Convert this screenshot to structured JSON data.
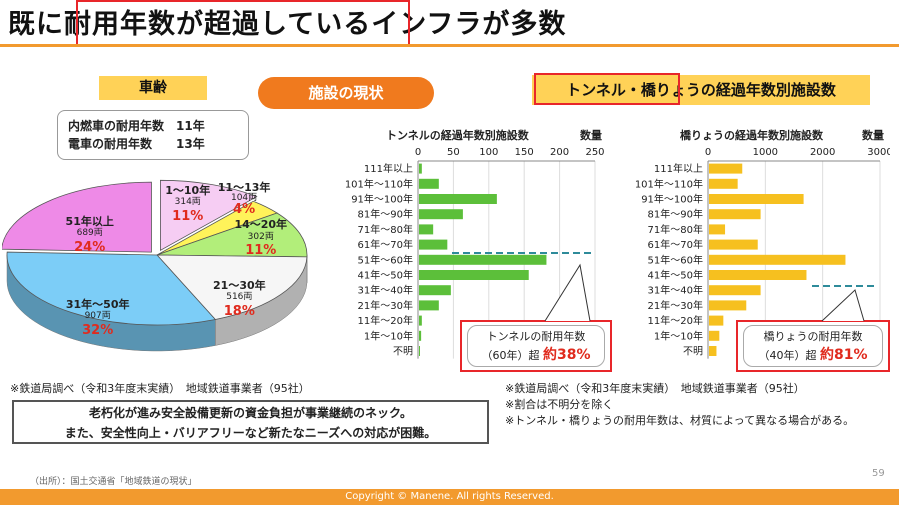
{
  "slide": {
    "title": "既に耐用年数が超過しているインフラが多数",
    "page_number": "59",
    "source": "（出所）：国土交通省「地域鉄道の現状」",
    "copyright": "Copyright © Manene. All rights Reserved."
  },
  "left": {
    "heading": "車齢",
    "lifespan_lines": [
      "内燃車の耐用年数　11年",
      "電車の耐用年数　　13年"
    ],
    "note": "※鉄道局調べ（令和3年度末実績）　地域鉄道事業者（95社）"
  },
  "center_pill": "施設の現状",
  "right_heading": "トンネル・橋りょうの経過年数別施設数",
  "pie_segments": [
    {
      "name": "1〜10年",
      "count": "314両",
      "pct": "11%",
      "value": 314,
      "color": "#f6cdf3"
    },
    {
      "name": "11〜13年",
      "count": "104両",
      "pct": "4%",
      "value": 104,
      "color": "#fff35a"
    },
    {
      "name": "14〜20年",
      "count": "302両",
      "pct": "11%",
      "value": 302,
      "color": "#b2ee7a"
    },
    {
      "name": "21〜30年",
      "count": "516両",
      "pct": "18%",
      "value": 516,
      "color": "#f6f6f6"
    },
    {
      "name": "31年〜50年",
      "count": "907両",
      "pct": "32%",
      "value": 907,
      "color": "#7ccdf7"
    },
    {
      "name": "51年以上",
      "count": "689両",
      "pct": "24%",
      "value": 689,
      "color": "#ee8ae7"
    }
  ],
  "info_box": [
    "老朽化が進み安全設備更新の資金負担が事業継続のネック。",
    "また、安全性向上・バリアフリーなど新たなニーズへの対応が困難。"
  ],
  "right_notes": [
    "※鉄道局調べ（令和3年度末実績）　地域鉄道事業者（95社）",
    "※割合は不明分を除く",
    "※トンネル・橋りょうの耐用年数は、材質によって異なる場合がある。"
  ],
  "chart_data": [
    {
      "type": "bar",
      "title": "トンネルの経過年数別施設数",
      "unit_label": "数量",
      "categories": [
        "111年以上",
        "101年〜110年",
        "91年〜100年",
        "81年〜90年",
        "71年〜80年",
        "61年〜70年",
        "51年〜60年",
        "41年〜50年",
        "31年〜40年",
        "21年〜30年",
        "11年〜20年",
        "1年〜10年",
        "不明"
      ],
      "values": [
        4,
        28,
        110,
        62,
        20,
        40,
        180,
        155,
        45,
        28,
        4,
        3,
        1
      ],
      "xlim": [
        0,
        250
      ],
      "ticks": [
        0,
        50,
        100,
        150,
        200,
        250
      ],
      "color": "#5cbf3a",
      "callout": {
        "title": "トンネルの耐用年数",
        "detail": "（60年）超",
        "pct": "約38%"
      }
    },
    {
      "type": "bar",
      "title": "橋りょうの経過年数別施設数",
      "unit_label": "数量",
      "categories": [
        "111年以上",
        "101年〜110年",
        "91年〜100年",
        "81年〜90年",
        "71年〜80年",
        "61年〜70年",
        "51年〜60年",
        "41年〜50年",
        "31年〜40年",
        "21年〜30年",
        "11年〜20年",
        "1年〜10年",
        "不明"
      ],
      "values": [
        580,
        500,
        1650,
        900,
        280,
        850,
        2380,
        1700,
        900,
        650,
        250,
        180,
        130
      ],
      "xlim": [
        0,
        3000
      ],
      "ticks": [
        0,
        1000,
        2000,
        3000
      ],
      "color": "#f6c01f",
      "callout": {
        "title": "橋りょうの耐用年数",
        "detail": "（40年）超",
        "pct": "約81%"
      }
    }
  ]
}
